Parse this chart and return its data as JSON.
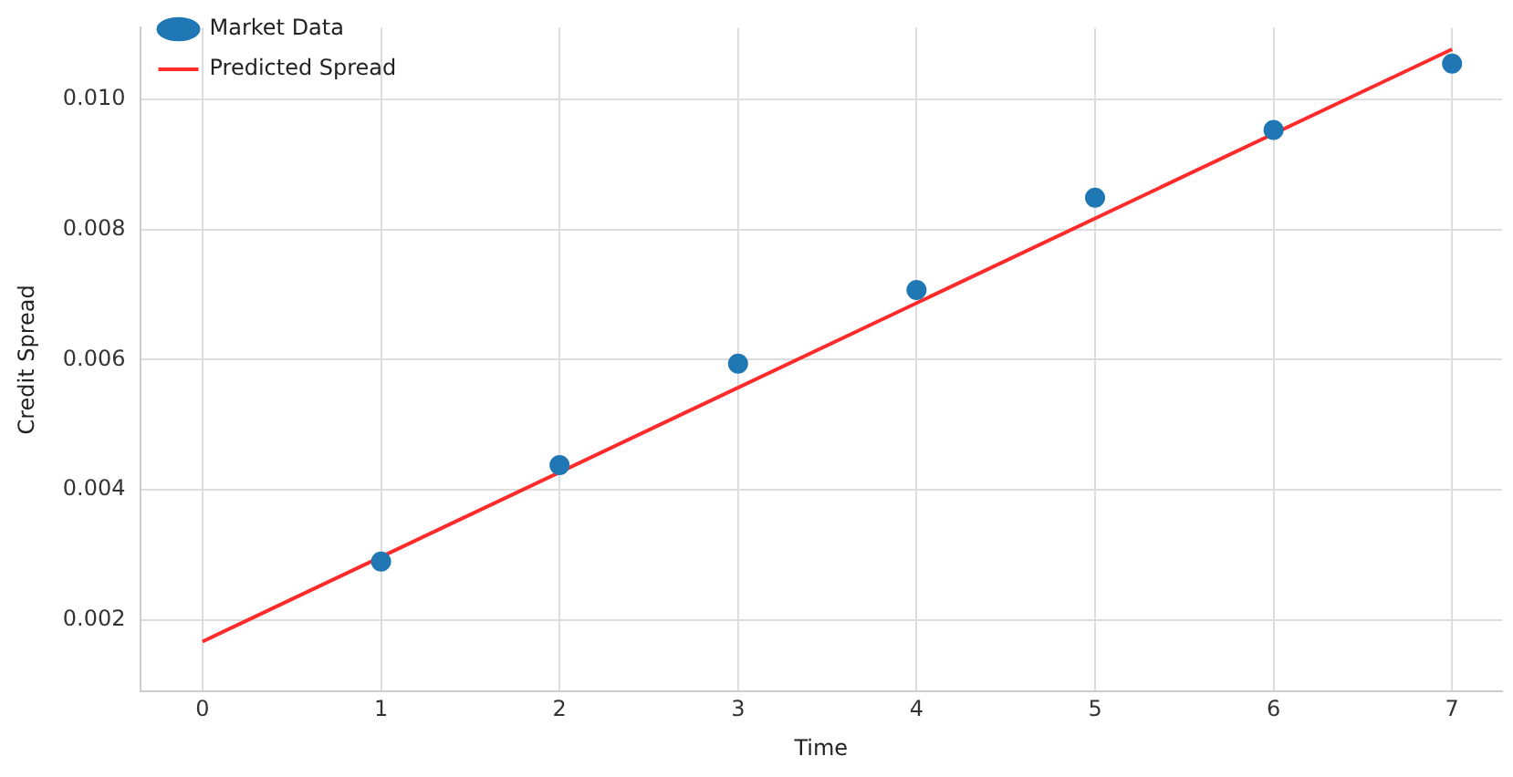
{
  "chart_data": {
    "type": "scatter",
    "xlabel": "Time",
    "ylabel": "Credit Spread",
    "xlim": [
      -0.35,
      7.28
    ],
    "ylim": [
      0.0009,
      0.0111
    ],
    "xticks": [
      0,
      1,
      2,
      3,
      4,
      5,
      6,
      7
    ],
    "yticks": [
      0.002,
      0.004,
      0.006,
      0.008,
      {
        "value": 0.01,
        "label": "0.010"
      }
    ],
    "grid": true,
    "legend": "top left",
    "series": [
      {
        "name": "Market Data",
        "marker": "circle",
        "color": "#1f77b4",
        "x": [
          1,
          2,
          3,
          4,
          5,
          6,
          7
        ],
        "values": [
          0.0029,
          0.00438,
          0.00594,
          0.00707,
          0.00849,
          0.00953,
          0.01055
        ]
      },
      {
        "name": "Predicted Spread",
        "type": "line",
        "marker": "none",
        "color": "#ff2a2a",
        "x": [
          0,
          7
        ],
        "values": [
          0.00167,
          0.01077
        ]
      }
    ]
  }
}
